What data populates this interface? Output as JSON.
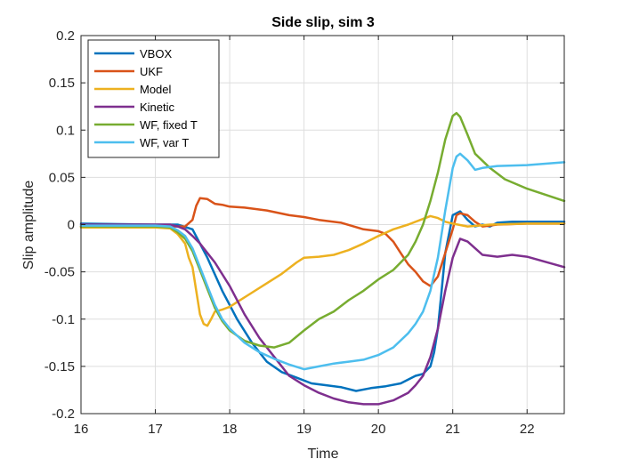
{
  "chart_data": {
    "type": "line",
    "title": "Side slip, sim 3",
    "xlabel": "Time",
    "ylabel": "Slip amplitude",
    "xlim": [
      16,
      22.5
    ],
    "ylim": [
      -0.2,
      0.2
    ],
    "xticks": [
      "16",
      "17",
      "18",
      "19",
      "20",
      "21",
      "22"
    ],
    "yticks": [
      "-0.2",
      "-0.15",
      "-0.1",
      "-0.05",
      "0",
      "0.05",
      "0.1",
      "0.15",
      "0.2"
    ],
    "grid": true,
    "legend_position": "top-left",
    "series": [
      {
        "name": "VBOX",
        "color": "#0072BD",
        "x": [
          16.0,
          17.0,
          17.3,
          17.5,
          17.7,
          17.9,
          18.1,
          18.3,
          18.5,
          18.7,
          18.9,
          19.1,
          19.3,
          19.5,
          19.7,
          19.9,
          20.1,
          20.3,
          20.5,
          20.6,
          20.7,
          20.75,
          20.8,
          20.85,
          20.9,
          21.0,
          21.1,
          21.2,
          21.3,
          21.4,
          21.5,
          21.6,
          21.8,
          22.0,
          22.5
        ],
        "y": [
          0.001,
          0.0,
          0.0,
          -0.005,
          -0.035,
          -0.07,
          -0.1,
          -0.125,
          -0.145,
          -0.156,
          -0.162,
          -0.168,
          -0.17,
          -0.172,
          -0.176,
          -0.173,
          -0.171,
          -0.168,
          -0.16,
          -0.158,
          -0.15,
          -0.135,
          -0.11,
          -0.07,
          -0.03,
          0.01,
          0.014,
          0.005,
          -0.002,
          0.0,
          -0.002,
          0.002,
          0.003,
          0.003,
          0.003
        ]
      },
      {
        "name": "UKF",
        "color": "#D95319",
        "x": [
          16.0,
          17.0,
          17.4,
          17.5,
          17.55,
          17.6,
          17.7,
          17.8,
          17.9,
          18.0,
          18.2,
          18.5,
          18.8,
          19.0,
          19.2,
          19.5,
          19.8,
          20.0,
          20.1,
          20.2,
          20.3,
          20.4,
          20.5,
          20.6,
          20.7,
          20.8,
          20.9,
          21.0,
          21.05,
          21.1,
          21.2,
          21.3,
          21.4,
          21.6,
          22.0,
          22.5
        ],
        "y": [
          -0.002,
          -0.002,
          -0.002,
          0.005,
          0.02,
          0.028,
          0.027,
          0.022,
          0.021,
          0.019,
          0.018,
          0.015,
          0.01,
          0.008,
          0.005,
          0.002,
          -0.005,
          -0.007,
          -0.01,
          -0.018,
          -0.03,
          -0.042,
          -0.05,
          -0.06,
          -0.065,
          -0.055,
          -0.03,
          -0.005,
          0.01,
          0.012,
          0.01,
          0.003,
          -0.002,
          0.0,
          0.001,
          0.001
        ]
      },
      {
        "name": "Model",
        "color": "#EDB120",
        "x": [
          16.0,
          17.0,
          17.2,
          17.3,
          17.4,
          17.45,
          17.5,
          17.55,
          17.6,
          17.65,
          17.7,
          17.75,
          17.8,
          17.9,
          18.0,
          18.1,
          18.3,
          18.5,
          18.7,
          18.9,
          19.0,
          19.2,
          19.4,
          19.6,
          19.8,
          20.0,
          20.2,
          20.4,
          20.6,
          20.7,
          20.8,
          20.9,
          21.0,
          21.2,
          21.5,
          22.0,
          22.5
        ],
        "y": [
          -0.003,
          -0.003,
          -0.004,
          -0.01,
          -0.02,
          -0.035,
          -0.045,
          -0.07,
          -0.095,
          -0.105,
          -0.107,
          -0.1,
          -0.092,
          -0.09,
          -0.087,
          -0.082,
          -0.072,
          -0.062,
          -0.052,
          -0.04,
          -0.035,
          -0.034,
          -0.032,
          -0.027,
          -0.02,
          -0.012,
          -0.005,
          0.0,
          0.006,
          0.009,
          0.007,
          0.003,
          0.001,
          -0.002,
          0.0,
          0.001,
          0.001
        ]
      },
      {
        "name": "Kinetic",
        "color": "#7E2F8E",
        "x": [
          16.0,
          17.0,
          17.2,
          17.3,
          17.4,
          17.5,
          17.6,
          17.8,
          18.0,
          18.2,
          18.4,
          18.6,
          18.8,
          19.0,
          19.2,
          19.4,
          19.6,
          19.8,
          20.0,
          20.2,
          20.4,
          20.5,
          20.6,
          20.7,
          20.8,
          20.9,
          21.0,
          21.1,
          21.2,
          21.3,
          21.4,
          21.6,
          21.8,
          22.0,
          22.5
        ],
        "y": [
          0.0,
          0.0,
          0.0,
          -0.002,
          -0.005,
          -0.012,
          -0.02,
          -0.04,
          -0.065,
          -0.095,
          -0.12,
          -0.14,
          -0.16,
          -0.17,
          -0.178,
          -0.184,
          -0.188,
          -0.19,
          -0.19,
          -0.186,
          -0.178,
          -0.17,
          -0.16,
          -0.14,
          -0.11,
          -0.07,
          -0.035,
          -0.015,
          -0.018,
          -0.025,
          -0.032,
          -0.034,
          -0.032,
          -0.034,
          -0.045
        ]
      },
      {
        "name": "WF, fixed T",
        "color": "#77AC30",
        "x": [
          16.0,
          17.0,
          17.2,
          17.3,
          17.4,
          17.5,
          17.6,
          17.7,
          17.8,
          17.9,
          18.0,
          18.2,
          18.4,
          18.6,
          18.8,
          19.0,
          19.2,
          19.4,
          19.6,
          19.8,
          20.0,
          20.2,
          20.4,
          20.5,
          20.6,
          20.7,
          20.8,
          20.9,
          21.0,
          21.05,
          21.1,
          21.2,
          21.3,
          21.5,
          21.7,
          22.0,
          22.5
        ],
        "y": [
          -0.002,
          -0.002,
          -0.003,
          -0.008,
          -0.015,
          -0.028,
          -0.048,
          -0.068,
          -0.088,
          -0.102,
          -0.112,
          -0.123,
          -0.128,
          -0.13,
          -0.125,
          -0.112,
          -0.1,
          -0.092,
          -0.08,
          -0.07,
          -0.058,
          -0.048,
          -0.032,
          -0.018,
          0.0,
          0.025,
          0.055,
          0.09,
          0.115,
          0.118,
          0.114,
          0.095,
          0.075,
          0.06,
          0.048,
          0.038,
          0.025
        ]
      },
      {
        "name": "WF, var T",
        "color": "#4DBEEE",
        "x": [
          16.0,
          17.0,
          17.2,
          17.3,
          17.4,
          17.5,
          17.6,
          17.7,
          17.8,
          17.9,
          18.0,
          18.2,
          18.4,
          18.6,
          18.8,
          19.0,
          19.2,
          19.4,
          19.6,
          19.8,
          20.0,
          20.2,
          20.4,
          20.5,
          20.6,
          20.7,
          20.8,
          20.9,
          21.0,
          21.05,
          21.1,
          21.2,
          21.3,
          21.4,
          21.6,
          22.0,
          22.5
        ],
        "y": [
          -0.001,
          -0.001,
          -0.002,
          -0.006,
          -0.012,
          -0.025,
          -0.045,
          -0.065,
          -0.085,
          -0.1,
          -0.11,
          -0.125,
          -0.135,
          -0.142,
          -0.148,
          -0.153,
          -0.15,
          -0.147,
          -0.145,
          -0.143,
          -0.138,
          -0.13,
          -0.115,
          -0.105,
          -0.092,
          -0.07,
          -0.035,
          0.015,
          0.06,
          0.072,
          0.075,
          0.068,
          0.058,
          0.06,
          0.062,
          0.063,
          0.066
        ]
      }
    ]
  }
}
